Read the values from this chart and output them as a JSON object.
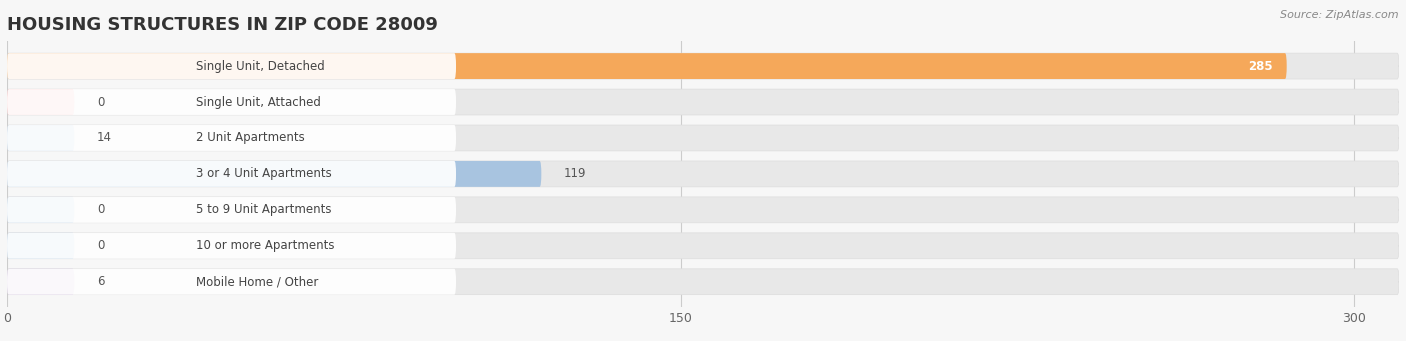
{
  "title": "HOUSING STRUCTURES IN ZIP CODE 28009",
  "source": "Source: ZipAtlas.com",
  "categories": [
    "Single Unit, Detached",
    "Single Unit, Attached",
    "2 Unit Apartments",
    "3 or 4 Unit Apartments",
    "5 to 9 Unit Apartments",
    "10 or more Apartments",
    "Mobile Home / Other"
  ],
  "values": [
    285,
    0,
    14,
    119,
    0,
    0,
    6
  ],
  "bar_colors": [
    "#f5a85a",
    "#f4a0a0",
    "#a8c4e0",
    "#a8c4e0",
    "#a8c4e0",
    "#a8c4e0",
    "#c8b4d8"
  ],
  "background_color": "#f7f7f7",
  "bar_bg_color": "#e8e8e8",
  "bar_bg_color2": "#ebebeb",
  "label_bg_color": "#ffffff",
  "xlim_max": 310,
  "xticks": [
    0,
    150,
    300
  ],
  "title_fontsize": 13,
  "label_fontsize": 8.5,
  "value_fontsize": 8.5,
  "bar_height": 0.72,
  "min_bar_display": 15
}
